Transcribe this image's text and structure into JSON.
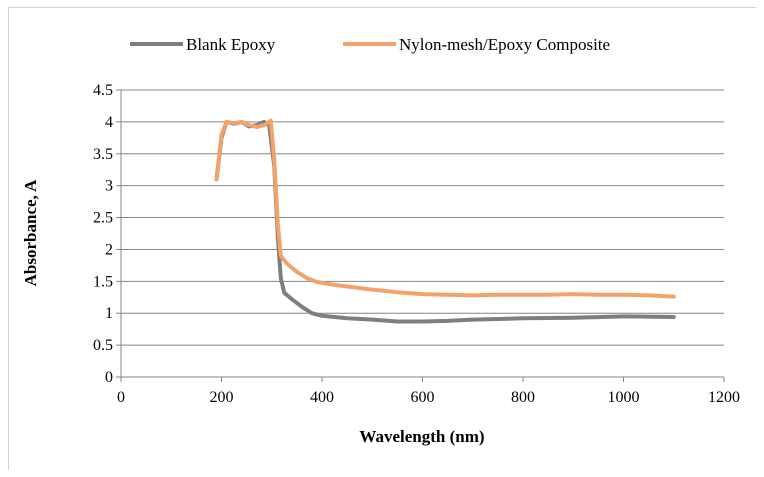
{
  "chart_data": {
    "type": "line",
    "xlabel": "Wavelength (nm)",
    "ylabel": "Absorbance, A",
    "xlim": [
      0,
      1200
    ],
    "ylim": [
      0,
      4.5
    ],
    "x_ticks": [
      "0",
      "200",
      "400",
      "600",
      "800",
      "1000",
      "1200"
    ],
    "y_ticks": [
      "0",
      "0.5",
      "1",
      "1.5",
      "2",
      "2.5",
      "3",
      "3.5",
      "4",
      "4.5"
    ],
    "grid": "horizontal",
    "legend_position": "top",
    "series": [
      {
        "name": "Blank Epoxy",
        "color": "#7f7f7f",
        "points": [
          [
            190,
            3.1
          ],
          [
            200,
            3.75
          ],
          [
            210,
            4.0
          ],
          [
            225,
            3.97
          ],
          [
            240,
            4.0
          ],
          [
            255,
            3.93
          ],
          [
            270,
            3.95
          ],
          [
            285,
            4.0
          ],
          [
            295,
            3.95
          ],
          [
            305,
            3.3
          ],
          [
            312,
            2.2
          ],
          [
            318,
            1.55
          ],
          [
            325,
            1.32
          ],
          [
            340,
            1.22
          ],
          [
            360,
            1.1
          ],
          [
            380,
            1.0
          ],
          [
            400,
            0.96
          ],
          [
            450,
            0.92
          ],
          [
            500,
            0.9
          ],
          [
            550,
            0.87
          ],
          [
            600,
            0.87
          ],
          [
            650,
            0.88
          ],
          [
            700,
            0.9
          ],
          [
            750,
            0.91
          ],
          [
            800,
            0.92
          ],
          [
            900,
            0.93
          ],
          [
            1000,
            0.95
          ],
          [
            1100,
            0.94
          ]
        ]
      },
      {
        "name": "Nylon-mesh/Epoxy Composite",
        "color": "#f4a26b",
        "points": [
          [
            190,
            3.1
          ],
          [
            200,
            3.8
          ],
          [
            210,
            4.0
          ],
          [
            225,
            3.98
          ],
          [
            240,
            4.0
          ],
          [
            255,
            3.95
          ],
          [
            270,
            3.92
          ],
          [
            285,
            3.95
          ],
          [
            298,
            4.02
          ],
          [
            305,
            3.4
          ],
          [
            312,
            2.4
          ],
          [
            318,
            1.9
          ],
          [
            330,
            1.78
          ],
          [
            350,
            1.65
          ],
          [
            370,
            1.55
          ],
          [
            390,
            1.49
          ],
          [
            420,
            1.45
          ],
          [
            460,
            1.41
          ],
          [
            500,
            1.37
          ],
          [
            550,
            1.33
          ],
          [
            600,
            1.3
          ],
          [
            650,
            1.29
          ],
          [
            700,
            1.28
          ],
          [
            750,
            1.29
          ],
          [
            800,
            1.29
          ],
          [
            850,
            1.29
          ],
          [
            900,
            1.3
          ],
          [
            950,
            1.29
          ],
          [
            1000,
            1.29
          ],
          [
            1050,
            1.28
          ],
          [
            1100,
            1.26
          ]
        ]
      }
    ]
  }
}
